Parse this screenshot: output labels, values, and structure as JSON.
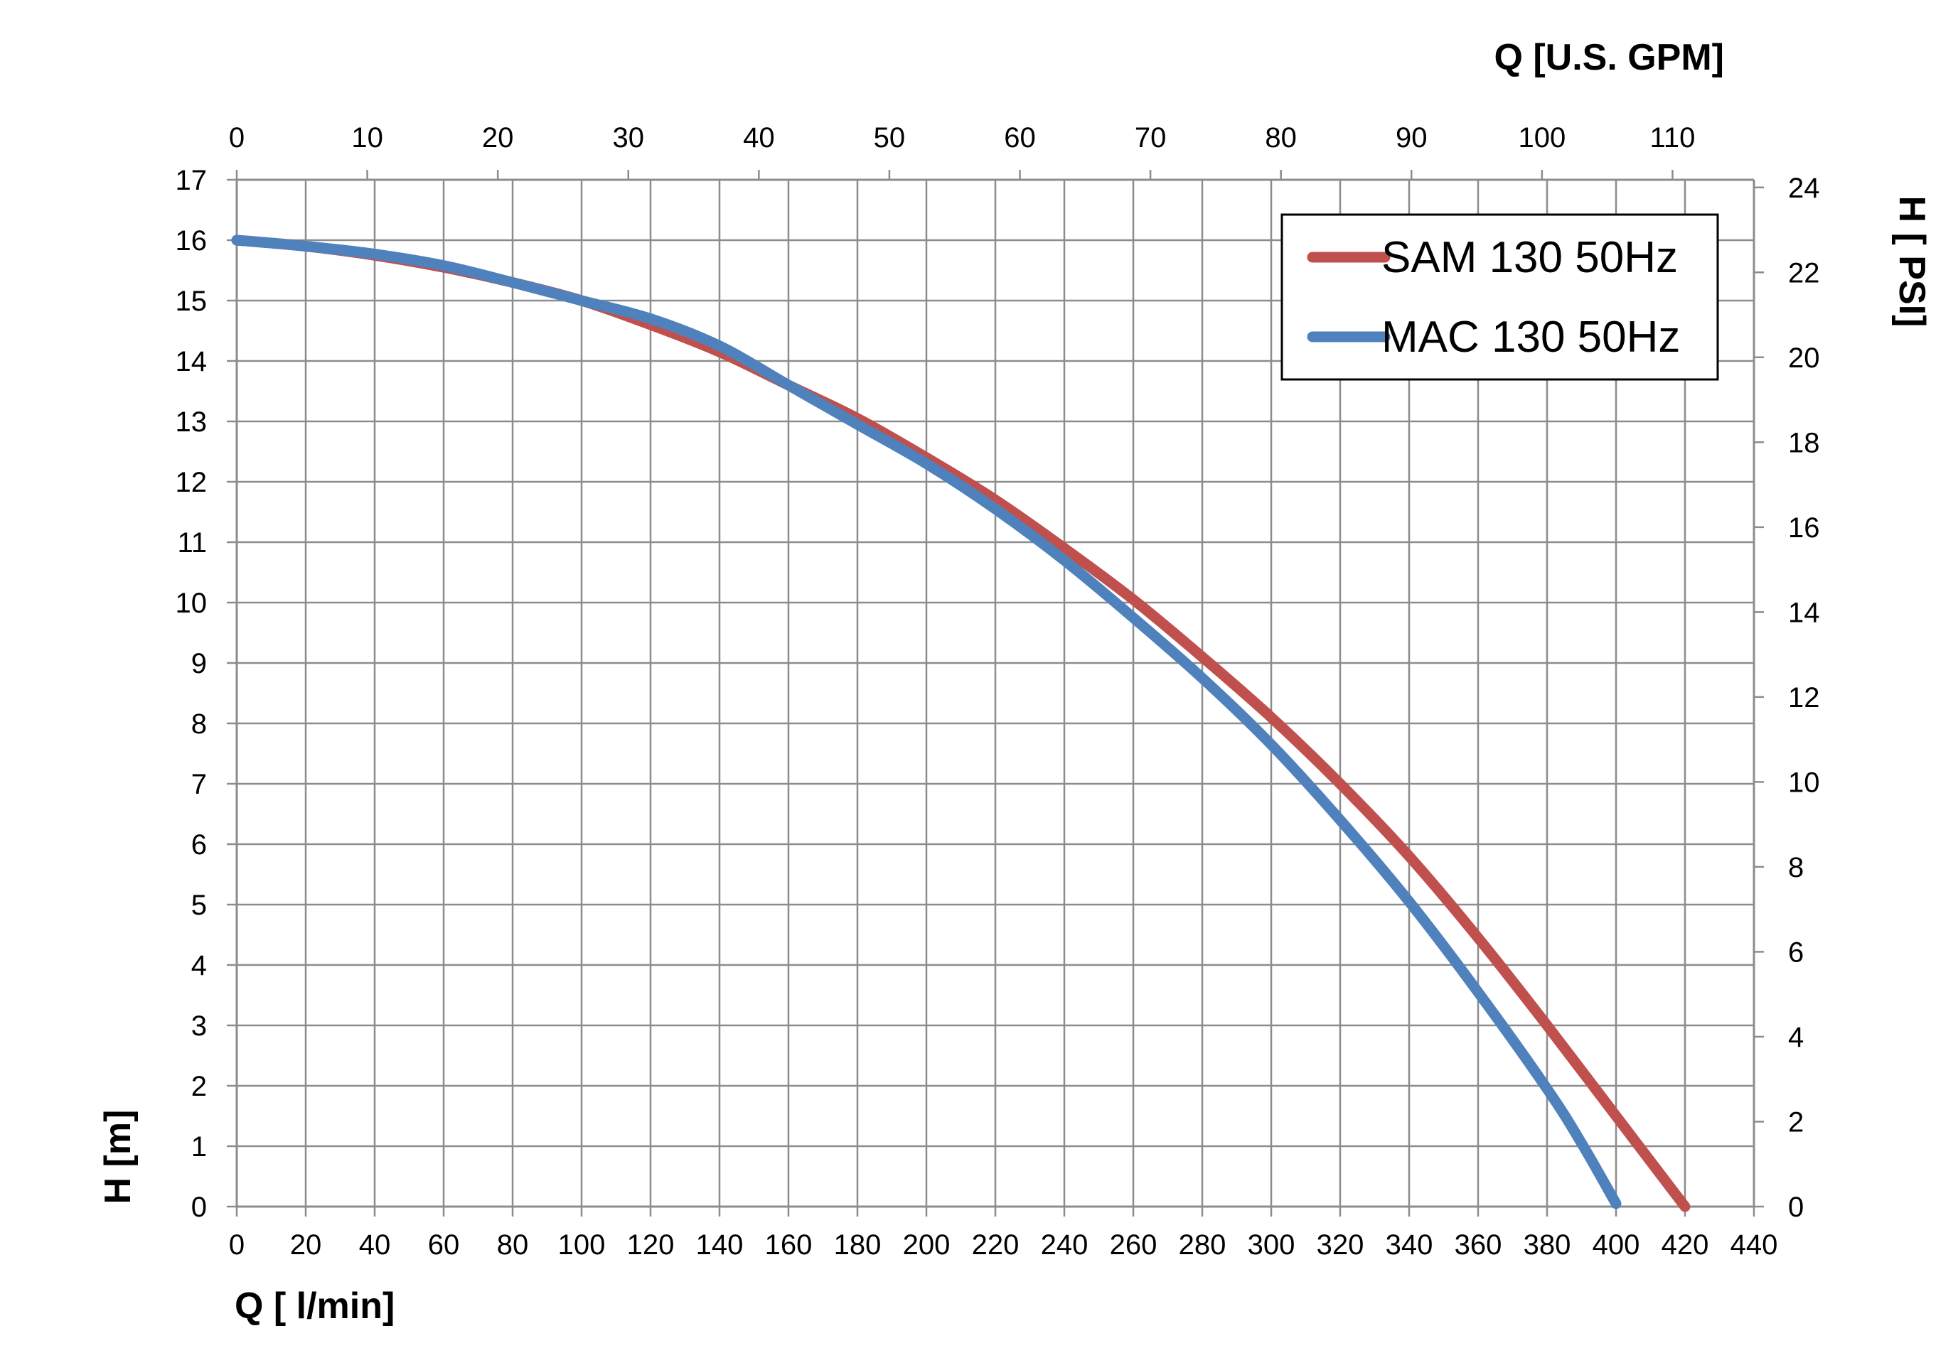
{
  "chart_data": {
    "type": "line",
    "x_axis_bottom": {
      "label": "Q [ l/min]",
      "min": 0,
      "max": 440,
      "step": 20,
      "ticks": [
        "0",
        "20",
        "40",
        "60",
        "80",
        "100",
        "120",
        "140",
        "160",
        "180",
        "200",
        "220",
        "240",
        "260",
        "280",
        "300",
        "320",
        "340",
        "360",
        "380",
        "400",
        "420",
        "440"
      ]
    },
    "x_axis_top": {
      "label": "Q  [U.S. GPM]",
      "min": 0,
      "max": 116.24,
      "step": 10,
      "ticks": [
        "0",
        "10",
        "20",
        "30",
        "40",
        "50",
        "60",
        "70",
        "80",
        "90",
        "100",
        "110"
      ]
    },
    "y_axis_left": {
      "label": "H [m]",
      "min": 0,
      "max": 17,
      "step": 1,
      "ticks": [
        "0",
        "1",
        "2",
        "3",
        "4",
        "5",
        "6",
        "7",
        "8",
        "9",
        "10",
        "11",
        "12",
        "13",
        "14",
        "15",
        "16",
        "17"
      ]
    },
    "y_axis_right": {
      "label": "H [ PSI]",
      "min": 0,
      "max": 24.18,
      "step": 2,
      "ticks": [
        "0",
        "2",
        "4",
        "6",
        "8",
        "10",
        "12",
        "14",
        "16",
        "18",
        "20",
        "22",
        "24"
      ]
    },
    "grid": true,
    "legend_position": "top-right",
    "series": [
      {
        "name": "SAM 130 50Hz",
        "color": "#C0504D",
        "x": [
          0,
          20,
          40,
          60,
          80,
          100,
          120,
          140,
          160,
          180,
          200,
          220,
          240,
          260,
          280,
          300,
          320,
          340,
          360,
          380,
          400,
          420
        ],
        "y": [
          16.0,
          15.9,
          15.75,
          15.55,
          15.3,
          15.0,
          14.6,
          14.15,
          13.6,
          13.05,
          12.4,
          11.7,
          10.9,
          10.05,
          9.1,
          8.1,
          7.0,
          5.8,
          4.45,
          3.0,
          1.5,
          0.0
        ]
      },
      {
        "name": "MAC 130 50Hz",
        "color": "#4F81BD",
        "x": [
          0,
          20,
          40,
          60,
          80,
          100,
          120,
          140,
          160,
          180,
          200,
          220,
          240,
          260,
          280,
          300,
          320,
          340,
          360,
          380,
          390,
          400
        ],
        "y": [
          16.0,
          15.9,
          15.77,
          15.58,
          15.3,
          15.0,
          14.7,
          14.25,
          13.6,
          12.95,
          12.3,
          11.55,
          10.7,
          9.75,
          8.75,
          7.65,
          6.4,
          5.05,
          3.55,
          1.95,
          1.05,
          0.05
        ]
      }
    ]
  }
}
